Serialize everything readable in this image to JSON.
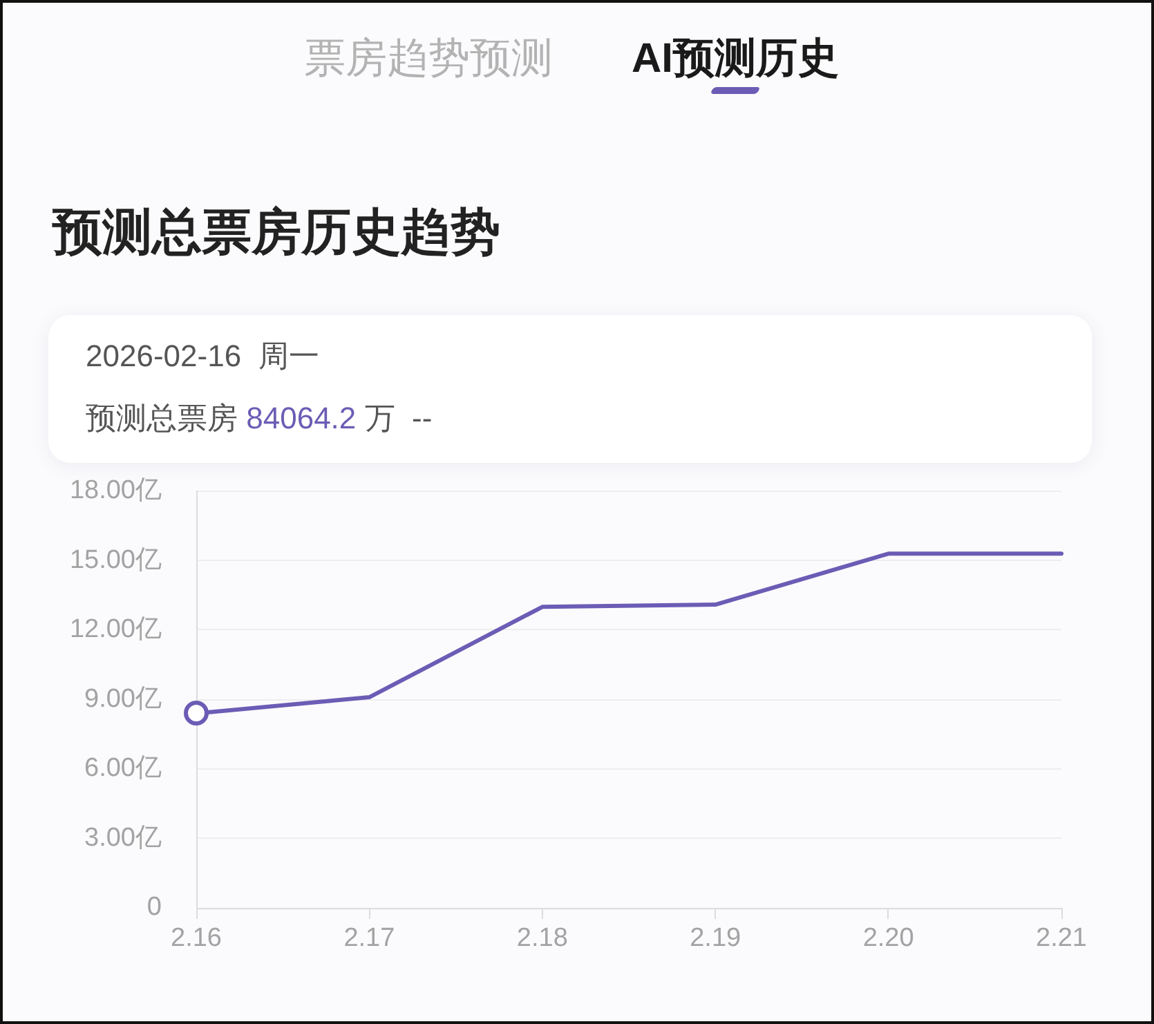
{
  "chart_data": {
    "type": "line",
    "title": "预测总票房历史趋势",
    "annotations": [
      "票房趋势预测",
      "AI预测历史",
      "2026-02-16  周一",
      "预测总票房 84064.2 万  --"
    ],
    "categories": [
      "2.16",
      "2.17",
      "2.18",
      "2.19",
      "2.20",
      "2.21"
    ],
    "series": [
      {
        "color": "#6c5cb5",
        "values": [
          8.4,
          9.1,
          13.0,
          13.1,
          15.3,
          15.3
        ]
      }
    ],
    "ylim": [
      0,
      18
    ],
    "yticks": [
      0,
      {
        "value": 3,
        "label": "3.00亿"
      },
      {
        "value": 6,
        "label": "6.00亿"
      },
      {
        "value": 9,
        "label": "9.00亿"
      },
      {
        "value": 12,
        "label": "12.00亿"
      },
      {
        "value": 15,
        "label": "15.00亿"
      },
      {
        "value": 18,
        "label": "18.00亿"
      }
    ],
    "grid": "y",
    "marker": "none"
  }
}
